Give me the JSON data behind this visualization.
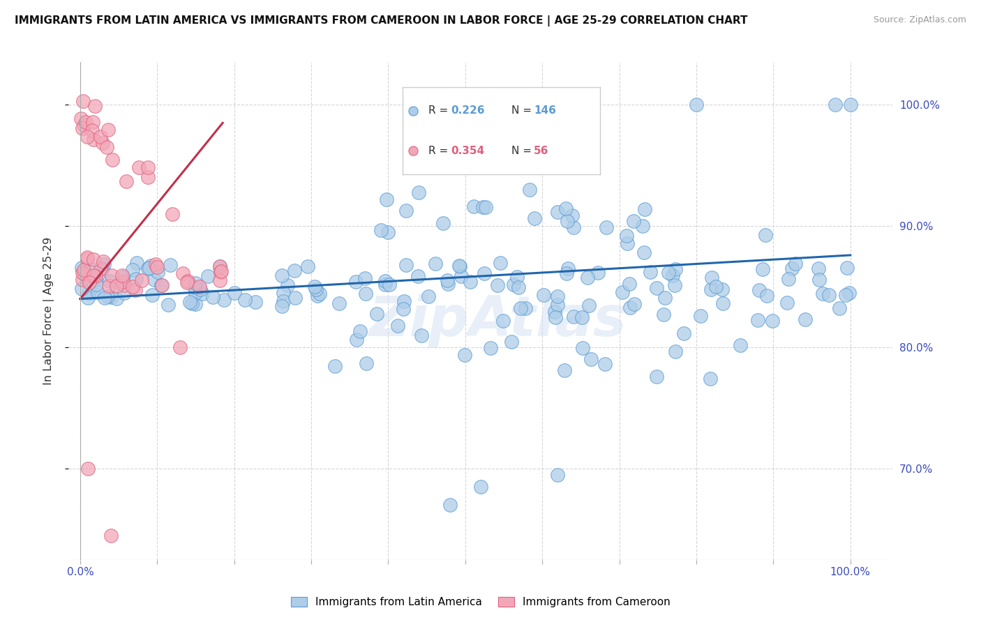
{
  "title": "IMMIGRANTS FROM LATIN AMERICA VS IMMIGRANTS FROM CAMEROON IN LABOR FORCE | AGE 25-29 CORRELATION CHART",
  "source": "Source: ZipAtlas.com",
  "ylabel": "In Labor Force | Age 25-29",
  "R_blue": 0.226,
  "N_blue": 146,
  "R_pink": 0.354,
  "N_pink": 56,
  "color_blue": "#5b9bd5",
  "color_pink": "#e0607e",
  "scatter_fill_blue": "#aecde8",
  "scatter_fill_pink": "#f2a7b8",
  "trendline_blue": "#2166ac",
  "trendline_pink": "#c0304a",
  "background_color": "#ffffff",
  "grid_color": "#cccccc",
  "watermark": "ZipAtlas",
  "label_color": "#3a4bbf",
  "legend_label_blue": "Immigrants from Latin America",
  "legend_label_pink": "Immigrants from Cameroon",
  "blue_trend_x0": 0.0,
  "blue_trend_y0": 0.84,
  "blue_trend_x1": 1.0,
  "blue_trend_y1": 0.876,
  "pink_trend_x0": 0.0,
  "pink_trend_y0": 0.84,
  "pink_trend_x1": 0.185,
  "pink_trend_y1": 0.985,
  "ylim_min": 0.625,
  "ylim_max": 1.035,
  "xlim_min": -0.015,
  "xlim_max": 1.055
}
